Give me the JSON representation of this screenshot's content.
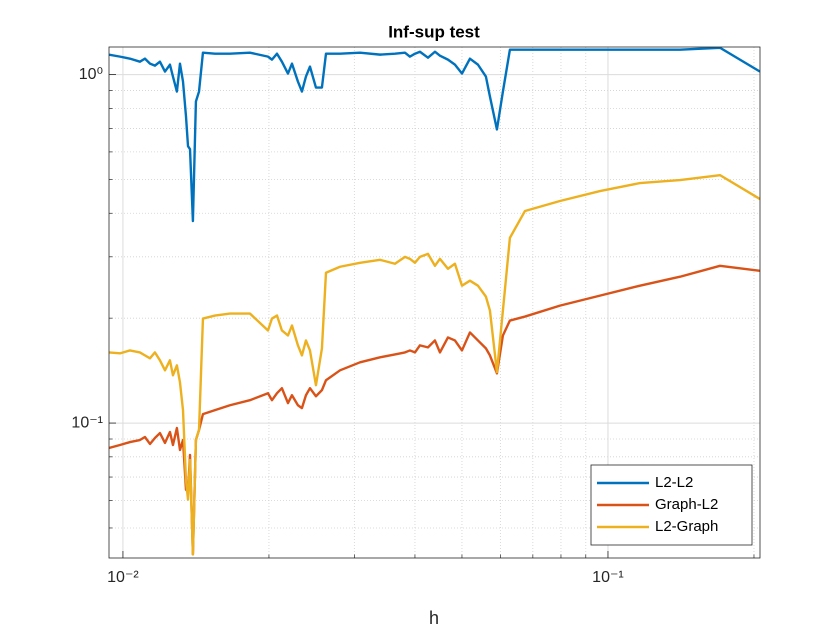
{
  "chart_data": {
    "type": "line",
    "title": "Inf-sup test",
    "xlabel": "h",
    "xscale": "log",
    "yscale": "log",
    "grid": true,
    "minor_grid": true,
    "legend": "lower right",
    "xlim": [
      0.00936,
      0.2058
    ],
    "ylim": [
      0.041,
      1.2
    ],
    "xticks": [
      {
        "value": 0.01,
        "label": "10⁻²"
      },
      {
        "value": 0.1,
        "label": "10⁻¹"
      }
    ],
    "yticks": [
      {
        "value": 0.1,
        "label": "10⁻¹"
      },
      {
        "value": 1,
        "label": "10⁰"
      }
    ],
    "x": [
      0.00936,
      0.00986,
      0.01034,
      0.01084,
      0.0111,
      0.01137,
      0.01164,
      0.01192,
      0.01221,
      0.0125,
      0.01268,
      0.01292,
      0.01311,
      0.0133,
      0.01349,
      0.01362,
      0.01375,
      0.01394,
      0.01414,
      0.01435,
      0.01462,
      0.01548,
      0.01662,
      0.01827,
      0.01991,
      0.02029,
      0.02078,
      0.02127,
      0.02189,
      0.02231,
      0.02295,
      0.02339,
      0.02384,
      0.0243,
      0.025,
      0.02572,
      0.02622,
      0.02803,
      0.03082,
      0.03389,
      0.03638,
      0.03815,
      0.03906,
      0.04,
      0.04096,
      0.04255,
      0.04398,
      0.04504,
      0.04678,
      0.04836,
      0.05,
      0.05193,
      0.05394,
      0.05602,
      0.0571,
      0.05903,
      0.06073,
      0.06278,
      0.06744,
      0.07962,
      0.09628,
      0.1164,
      0.1408,
      0.1702,
      0.2058
    ],
    "series": [
      {
        "name": "L2-L2",
        "color": "#0072bd",
        "values": [
          1.141,
          1.126,
          1.111,
          1.089,
          1.111,
          1.075,
          1.061,
          1.089,
          1.02,
          1.068,
          0.987,
          0.894,
          1.075,
          0.955,
          0.759,
          0.623,
          0.611,
          0.38,
          0.837,
          0.894,
          1.156,
          1.148,
          1.148,
          1.156,
          1.126,
          1.104,
          1.148,
          1.089,
          1.007,
          1.075,
          0.955,
          0.894,
          0.987,
          1.054,
          0.918,
          0.918,
          1.148,
          1.148,
          1.156,
          1.141,
          1.148,
          1.156,
          1.126,
          1.148,
          1.163,
          1.118,
          1.163,
          1.133,
          1.104,
          1.068,
          1.007,
          1.111,
          1.068,
          0.987,
          0.865,
          0.696,
          0.894,
          1.179,
          1.179,
          1.179,
          1.179,
          1.179,
          1.179,
          1.194,
          1.02
        ]
      },
      {
        "name": "Graph-L2",
        "color": "#d95319",
        "values": [
          0.0848,
          0.0865,
          0.0882,
          0.0894,
          0.0912,
          0.0871,
          0.0906,
          0.0936,
          0.0877,
          0.0943,
          0.0865,
          0.0968,
          0.0837,
          0.0894,
          0.0644,
          0.0635,
          0.081,
          0.042,
          0.0894,
          0.0955,
          0.1061,
          0.1089,
          0.1125,
          0.1163,
          0.1218,
          0.1163,
          0.1218,
          0.1259,
          0.1141,
          0.1202,
          0.1125,
          0.1104,
          0.1202,
          0.1259,
          0.1194,
          0.1243,
          0.1327,
          0.1417,
          0.1494,
          0.1544,
          0.1574,
          0.1595,
          0.1616,
          0.1595,
          0.1671,
          0.1649,
          0.1726,
          0.1595,
          0.1761,
          0.1726,
          0.1616,
          0.182,
          0.1726,
          0.1638,
          0.1564,
          0.1389,
          0.1784,
          0.1969,
          0.2021,
          0.2173,
          0.2321,
          0.2479,
          0.263,
          0.2827,
          0.2735
        ]
      },
      {
        "name": "L2-Graph",
        "color": "#edb120",
        "values": [
          0.1595,
          0.1585,
          0.1616,
          0.1595,
          0.1564,
          0.1534,
          0.1595,
          0.1514,
          0.1417,
          0.1514,
          0.1371,
          0.1464,
          0.1309,
          0.1089,
          0.0687,
          0.0603,
          0.0784,
          0.042,
          0.0894,
          0.0955,
          0.1995,
          0.2035,
          0.2062,
          0.2062,
          0.1844,
          0.1995,
          0.2035,
          0.1844,
          0.1784,
          0.1905,
          0.1671,
          0.1564,
          0.1726,
          0.1616,
          0.1284,
          0.1638,
          0.27,
          0.2809,
          0.2884,
          0.2941,
          0.2865,
          0.2999,
          0.296,
          0.2884,
          0.2999,
          0.3059,
          0.2827,
          0.296,
          0.2772,
          0.2865,
          0.2479,
          0.2562,
          0.2479,
          0.2306,
          0.2103,
          0.14,
          0.2103,
          0.34,
          0.4061,
          0.4337,
          0.4631,
          0.4883,
          0.498,
          0.5146,
          0.4394
        ]
      }
    ]
  }
}
